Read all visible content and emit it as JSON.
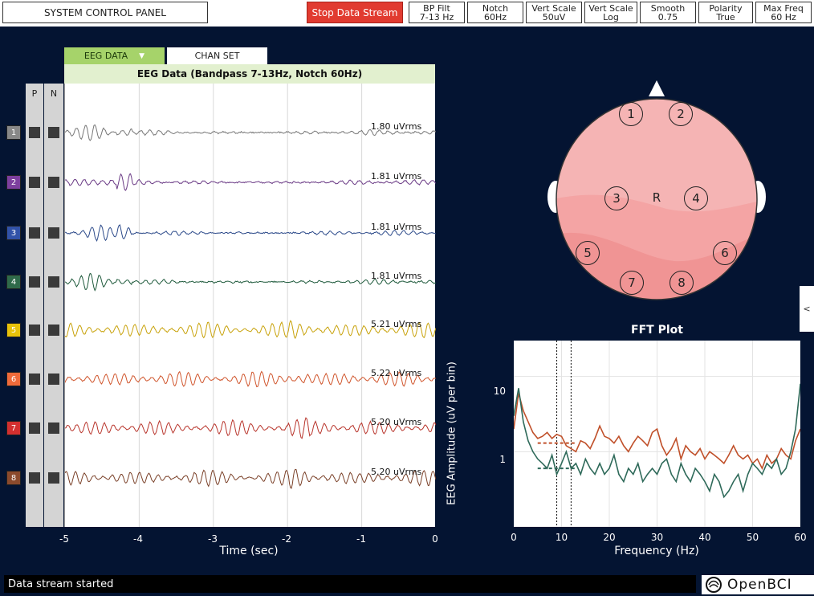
{
  "top": {
    "system_panel": "SYSTEM CONTROL PANEL",
    "stop_stream": "Stop Data Stream",
    "controls": [
      {
        "title": "BP Filt",
        "value": "7-13 Hz"
      },
      {
        "title": "Notch",
        "value": "60Hz"
      },
      {
        "title": "Vert Scale",
        "value": "50uV"
      },
      {
        "title": "Vert Scale",
        "value": "Log"
      },
      {
        "title": "Smooth",
        "value": "0.75"
      },
      {
        "title": "Polarity",
        "value": "True"
      },
      {
        "title": "Max Freq",
        "value": "60 Hz"
      }
    ]
  },
  "eeg": {
    "tab_active": "EEG DATA",
    "tab_inactive": "CHAN SET",
    "header_title": "EEG Data (Bandpass 7-13Hz, Notch 60Hz)",
    "col_p": "P",
    "col_n": "N",
    "x_ticks": [
      "-5",
      "-4",
      "-3",
      "-2",
      "-1",
      "0"
    ],
    "x_title": "Time (sec)",
    "channels": [
      {
        "num": "1",
        "color": "#888888",
        "wave": "#777777",
        "rms": "1.80 uVrms"
      },
      {
        "num": "2",
        "color": "#7d3f9e",
        "wave": "#6a3a85",
        "rms": "1.81 uVrms"
      },
      {
        "num": "3",
        "color": "#3152a8",
        "wave": "#2c4a8a",
        "rms": "1.81 uVrms"
      },
      {
        "num": "4",
        "color": "#2f6a4a",
        "wave": "#1f5a3c",
        "rms": "1.81 uVrms"
      },
      {
        "num": "5",
        "color": "#e8c20a",
        "wave": "#c8a20a",
        "rms": "5.21 uVrms"
      },
      {
        "num": "6",
        "color": "#ef6a3a",
        "wave": "#d0552c",
        "rms": "5.22 uVrms"
      },
      {
        "num": "7",
        "color": "#d32f2f",
        "wave": "#b8342b",
        "rms": "5.20 uVrms"
      },
      {
        "num": "8",
        "color": "#8b4a2c",
        "wave": "#7a4028",
        "rms": "5.20 uVrms"
      }
    ]
  },
  "head": {
    "center_label": "R",
    "electrodes": [
      "1",
      "2",
      "3",
      "4",
      "5",
      "6",
      "7",
      "8"
    ]
  },
  "side_tab": "<",
  "chart_data": {
    "type": "line",
    "title": "FFT Plot",
    "xlabel": "Frequency (Hz)",
    "ylabel": "EEG Amplitude (uV per bin)",
    "y_scale": "log",
    "xlim": [
      0,
      60
    ],
    "ylim": [
      0.1,
      30
    ],
    "x_ticks": [
      0,
      10,
      20,
      30,
      40,
      50,
      60
    ],
    "y_tick_labels": [
      "10",
      "1"
    ],
    "grid": true,
    "markers": [
      9,
      12
    ],
    "x": [
      0,
      1,
      2,
      3,
      4,
      5,
      6,
      7,
      8,
      9,
      10,
      11,
      12,
      13,
      14,
      15,
      16,
      17,
      18,
      19,
      20,
      21,
      22,
      23,
      24,
      25,
      26,
      27,
      28,
      29,
      30,
      31,
      32,
      33,
      34,
      35,
      36,
      37,
      38,
      39,
      40,
      41,
      42,
      43,
      44,
      45,
      46,
      47,
      48,
      49,
      50,
      51,
      52,
      53,
      54,
      55,
      56,
      57,
      58,
      59,
      60
    ],
    "series": [
      {
        "color": "#c0502a",
        "values": [
          2.0,
          6.0,
          3.5,
          2.5,
          1.8,
          1.5,
          1.6,
          1.8,
          1.5,
          1.7,
          1.6,
          1.2,
          1.1,
          1.0,
          1.4,
          1.3,
          1.1,
          1.5,
          2.2,
          1.6,
          1.5,
          1.3,
          1.6,
          1.2,
          1.0,
          1.3,
          1.6,
          1.4,
          1.2,
          1.8,
          2.0,
          1.2,
          0.9,
          1.1,
          1.5,
          0.8,
          1.2,
          1.0,
          0.9,
          1.1,
          0.8,
          1.0,
          0.9,
          0.8,
          0.7,
          0.9,
          1.2,
          0.9,
          0.8,
          0.9,
          0.7,
          0.8,
          0.6,
          0.9,
          0.7,
          0.8,
          1.1,
          0.9,
          0.8,
          1.4,
          2.0
        ],
        "dashed_level": 1.3
      },
      {
        "color": "#2f6a5a",
        "values": [
          3.0,
          7.0,
          2.5,
          1.4,
          1.0,
          0.8,
          0.7,
          0.6,
          0.9,
          0.5,
          0.7,
          1.0,
          0.6,
          0.7,
          0.5,
          0.8,
          0.6,
          0.5,
          0.7,
          0.5,
          0.6,
          0.9,
          0.5,
          0.4,
          0.6,
          0.5,
          0.7,
          0.4,
          0.5,
          0.6,
          0.5,
          0.7,
          0.8,
          0.5,
          0.4,
          0.7,
          0.5,
          0.4,
          0.6,
          0.5,
          0.4,
          0.3,
          0.5,
          0.4,
          0.25,
          0.3,
          0.4,
          0.5,
          0.3,
          0.5,
          0.7,
          0.6,
          0.5,
          0.7,
          0.6,
          0.8,
          0.5,
          0.6,
          1.0,
          2.0,
          8.0
        ],
        "dashed_level": 0.6
      }
    ]
  },
  "status": "Data stream started",
  "logo": "OpenBCI"
}
